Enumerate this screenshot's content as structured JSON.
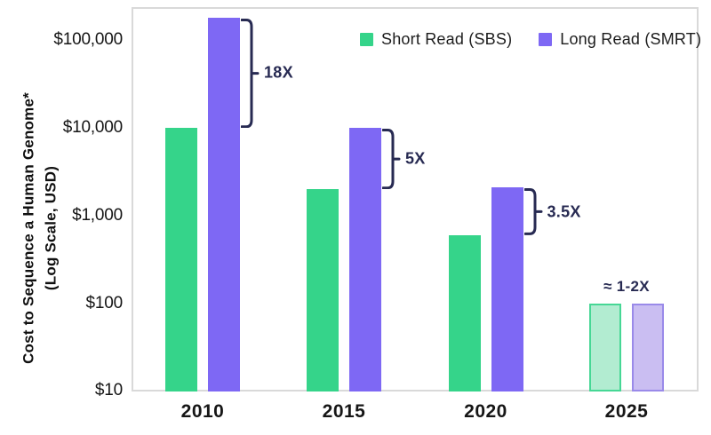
{
  "colors": {
    "short_read": "#35d48a",
    "long_read": "#7e68f4",
    "short_read_projected_fill": "#b2ecd1",
    "short_read_projected_border": "#46d795",
    "long_read_projected_fill": "#cabef2",
    "long_read_projected_border": "#9a8ae9",
    "annotation_navy": "#272a52",
    "axis_border": "#d9d9d9",
    "text": "#161616"
  },
  "chart_data": {
    "type": "bar",
    "scale": "log",
    "grid": false,
    "legend_position": "top-right",
    "ylabel_line1": "Cost to Sequence a Human Genome*",
    "ylabel_line2": "(Log Scale, USD)",
    "categories": [
      "2010",
      "2015",
      "2020",
      "2025"
    ],
    "series": [
      {
        "name": "Short Read (SBS)",
        "values": [
          10000,
          2000,
          600,
          100
        ]
      },
      {
        "name": "Long Read (SMRT)",
        "values": [
          180000,
          10000,
          2100,
          100
        ]
      }
    ],
    "ratio_annotations": [
      {
        "category": "2010",
        "label": "18X",
        "bracket": true
      },
      {
        "category": "2015",
        "label": "5X",
        "bracket": true
      },
      {
        "category": "2020",
        "label": "3.5X",
        "bracket": true
      },
      {
        "category": "2025",
        "label": "≈ 1-2X",
        "bracket": false
      }
    ],
    "y_ticks": [
      {
        "label": "$100,000",
        "value": 100000
      },
      {
        "label": "$10,000",
        "value": 10000
      },
      {
        "label": "$1,000",
        "value": 1000
      },
      {
        "label": "$100",
        "value": 100
      },
      {
        "label": "$10",
        "value": 10
      }
    ],
    "ylim": [
      10,
      200000
    ],
    "projected_category": "2025"
  }
}
